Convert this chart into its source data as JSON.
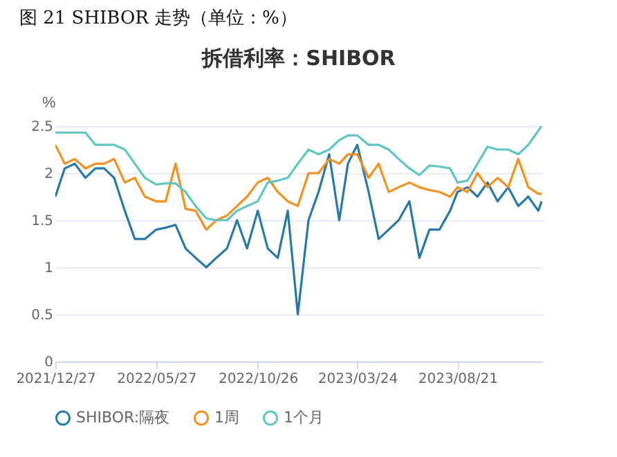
{
  "chart_data": {
    "type": "line",
    "title": "拆借利率：SHIBOR",
    "ylabel": "%",
    "annotations": [
      "图 21 SHIBOR 走势（单位：%）"
    ],
    "x": [
      "2021-12-27",
      "2022-01-10",
      "2022-01-25",
      "2022-02-10",
      "2022-02-25",
      "2022-03-10",
      "2022-03-25",
      "2022-04-10",
      "2022-04-25",
      "2022-05-10",
      "2022-05-27",
      "2022-06-10",
      "2022-06-25",
      "2022-07-10",
      "2022-07-25",
      "2022-08-10",
      "2022-08-25",
      "2022-09-10",
      "2022-09-25",
      "2022-10-10",
      "2022-10-26",
      "2022-11-10",
      "2022-11-25",
      "2022-12-10",
      "2022-12-25",
      "2023-01-10",
      "2023-01-25",
      "2023-02-10",
      "2023-02-25",
      "2023-03-10",
      "2023-03-24",
      "2023-04-10",
      "2023-04-25",
      "2023-05-10",
      "2023-05-25",
      "2023-06-10",
      "2023-06-25",
      "2023-07-10",
      "2023-07-25",
      "2023-08-10",
      "2023-08-21",
      "2023-09-05",
      "2023-09-20",
      "2023-10-05",
      "2023-10-20",
      "2023-11-05",
      "2023-11-20",
      "2023-12-05",
      "2023-12-20",
      "2023-12-25"
    ],
    "series": [
      {
        "name": "SHIBOR:隔夜",
        "color": "#2878a8",
        "values": [
          1.75,
          2.05,
          2.1,
          1.95,
          2.05,
          2.05,
          1.95,
          1.6,
          1.3,
          1.3,
          1.4,
          1.42,
          1.45,
          1.2,
          1.1,
          1.0,
          1.1,
          1.2,
          1.5,
          1.2,
          1.6,
          1.2,
          1.1,
          1.6,
          0.5,
          1.5,
          1.8,
          2.2,
          1.5,
          2.1,
          2.3,
          1.8,
          1.3,
          1.4,
          1.5,
          1.7,
          1.1,
          1.4,
          1.4,
          1.6,
          1.8,
          1.85,
          1.75,
          1.9,
          1.7,
          1.85,
          1.65,
          1.75,
          1.6,
          1.7
        ]
      },
      {
        "name": "1周",
        "color": "#f5901e",
        "values": [
          2.3,
          2.1,
          2.15,
          2.05,
          2.1,
          2.1,
          2.15,
          1.9,
          1.95,
          1.75,
          1.7,
          1.7,
          2.1,
          1.62,
          1.6,
          1.4,
          1.5,
          1.55,
          1.65,
          1.75,
          1.9,
          1.95,
          1.8,
          1.7,
          1.65,
          2.0,
          2.0,
          2.15,
          2.1,
          2.2,
          2.2,
          1.95,
          2.1,
          1.8,
          1.85,
          1.9,
          1.85,
          1.82,
          1.8,
          1.75,
          1.85,
          1.8,
          2.0,
          1.85,
          1.95,
          1.85,
          2.15,
          1.85,
          1.78,
          1.78
        ]
      },
      {
        "name": "1个月",
        "color": "#5fc6c1",
        "values": [
          2.43,
          2.43,
          2.43,
          2.43,
          2.3,
          2.3,
          2.3,
          2.25,
          2.1,
          1.95,
          1.88,
          1.89,
          1.89,
          1.8,
          1.65,
          1.52,
          1.5,
          1.5,
          1.6,
          1.65,
          1.7,
          1.9,
          1.92,
          1.95,
          2.1,
          2.25,
          2.2,
          2.25,
          2.35,
          2.4,
          2.4,
          2.3,
          2.3,
          2.25,
          2.15,
          2.05,
          1.98,
          2.08,
          2.07,
          2.05,
          1.9,
          1.92,
          2.1,
          2.28,
          2.25,
          2.25,
          2.2,
          2.3,
          2.45,
          2.5
        ]
      }
    ],
    "xlim": [
      "2021-12-27",
      "2023-12-26"
    ],
    "xticks": [
      {
        "value": "2021-12-27",
        "label": "2021/12/27"
      },
      {
        "value": "2022-05-27",
        "label": "2022/05/27"
      },
      {
        "value": "2022-10-26",
        "label": "2022/10/26"
      },
      {
        "value": "2023-03-24",
        "label": "2023/03/24"
      },
      {
        "value": "2023-08-21",
        "label": "2023/08/21"
      }
    ],
    "ylim": [
      0,
      2.5
    ],
    "yticks": [
      0,
      0.5,
      1,
      1.5,
      2,
      2.5
    ],
    "grid": "y",
    "legend": "bottom",
    "marker": "none",
    "line_style": "solid"
  }
}
